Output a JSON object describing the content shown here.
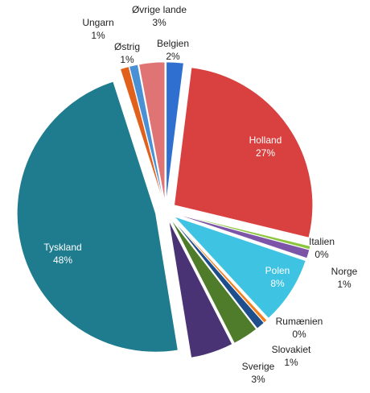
{
  "chart_data": {
    "type": "pie",
    "categories": [
      "Belgien",
      "Holland",
      "Italien",
      "Norge",
      "Polen",
      "Rumænien",
      "Slovakiet",
      "Sverige",
      null,
      "Tyskland",
      "Ungarn",
      "Østrig",
      "Øvrige lande"
    ],
    "values": [
      2,
      27,
      0.4,
      1,
      8,
      0.4,
      1,
      3,
      5,
      48,
      1,
      1,
      3
    ],
    "value_labels": [
      "2%",
      "27%",
      "0%",
      "1%",
      "8%",
      "0%",
      "1%",
      "3%",
      null,
      "48%",
      "1%",
      "1%",
      "3%"
    ],
    "colors": [
      "#2f6fd0",
      "#d8413f",
      "#8cc63f",
      "#7d55a8",
      "#3fc3e2",
      "#f07f1f",
      "#1f4e8c",
      "#4f7c2a",
      "#4a3374",
      "#1f7b8e",
      "#e0601c",
      "#4a90d4",
      "#e07474"
    ]
  }
}
